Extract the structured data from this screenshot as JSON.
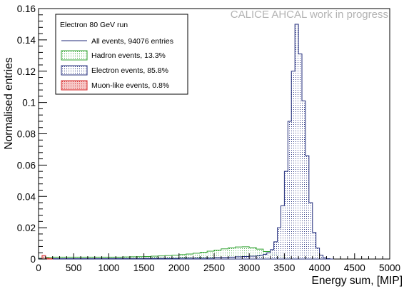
{
  "chart_data": {
    "type": "step-histogram",
    "watermark": "CALICE AHCAL work in progress",
    "xlabel": "Energy sum, [MIP]",
    "ylabel": "Normalised entries",
    "xlim": [
      0,
      5000
    ],
    "ylim": [
      0,
      0.16
    ],
    "x_ticks": [
      "0",
      "500",
      "1000",
      "1500",
      "2000",
      "2500",
      "3000",
      "3500",
      "4000",
      "4500",
      "5000"
    ],
    "y_ticks": [
      "0",
      "0.02",
      "0.04",
      "0.06",
      "0.08",
      "0.1",
      "0.12",
      "0.14",
      "0.16"
    ],
    "bin_width": 50,
    "legend": {
      "header": "Electron 80 GeV run",
      "entries": [
        {
          "label": "All events,  94076 entries",
          "style": "line"
        },
        {
          "label": "Hadron events, 13.3%",
          "style": "box"
        },
        {
          "label": "Electron events, 85.8%",
          "style": "box"
        },
        {
          "label": "Muon-like events, 0.8%",
          "style": "box"
        }
      ]
    },
    "series": [
      {
        "name": "Hadron events, 13.3%",
        "color": "#2ca02c",
        "fill": "#cdeccd",
        "bins": [
          [
            0,
            0.0005
          ],
          [
            100,
            0.001
          ],
          [
            200,
            0.0012
          ],
          [
            300,
            0.0012
          ],
          [
            400,
            0.0012
          ],
          [
            500,
            0.0012
          ],
          [
            600,
            0.0012
          ],
          [
            700,
            0.0012
          ],
          [
            800,
            0.0012
          ],
          [
            900,
            0.0012
          ],
          [
            1000,
            0.0012
          ],
          [
            1100,
            0.0012
          ],
          [
            1200,
            0.0013
          ],
          [
            1300,
            0.0014
          ],
          [
            1400,
            0.0015
          ],
          [
            1500,
            0.0016
          ],
          [
            1600,
            0.0018
          ],
          [
            1700,
            0.002
          ],
          [
            1800,
            0.0022
          ],
          [
            1900,
            0.0025
          ],
          [
            2000,
            0.0028
          ],
          [
            2100,
            0.0032
          ],
          [
            2200,
            0.0037
          ],
          [
            2300,
            0.0043
          ],
          [
            2400,
            0.005
          ],
          [
            2500,
            0.0057
          ],
          [
            2600,
            0.0065
          ],
          [
            2700,
            0.0072
          ],
          [
            2800,
            0.0077
          ],
          [
            2900,
            0.0078
          ],
          [
            3000,
            0.0073
          ],
          [
            3100,
            0.0063
          ],
          [
            3200,
            0.0048
          ],
          [
            3300,
            0.003
          ],
          [
            3400,
            0.0015
          ],
          [
            3500,
            0.0005
          ],
          [
            3600,
            0.0002
          ]
        ]
      },
      {
        "name": "Electron events, 85.8%",
        "color": "#1f2a7a",
        "fill": "#dfe3f4",
        "bins": [
          [
            0,
            0.0002
          ],
          [
            500,
            0.0002
          ],
          [
            1000,
            0.0003
          ],
          [
            1500,
            0.0004
          ],
          [
            2000,
            0.0006
          ],
          [
            2500,
            0.001
          ],
          [
            2700,
            0.0012
          ],
          [
            2800,
            0.0014
          ],
          [
            2900,
            0.0016
          ],
          [
            3000,
            0.0018
          ],
          [
            3100,
            0.002
          ],
          [
            3150,
            0.0024
          ],
          [
            3200,
            0.003
          ],
          [
            3250,
            0.004
          ],
          [
            3300,
            0.006
          ],
          [
            3350,
            0.011
          ],
          [
            3400,
            0.02
          ],
          [
            3450,
            0.034
          ],
          [
            3500,
            0.056
          ],
          [
            3550,
            0.088
          ],
          [
            3600,
            0.12
          ],
          [
            3650,
            0.15
          ],
          [
            3700,
            0.131
          ],
          [
            3750,
            0.101
          ],
          [
            3800,
            0.066
          ],
          [
            3850,
            0.036
          ],
          [
            3900,
            0.017
          ],
          [
            3950,
            0.007
          ],
          [
            4000,
            0.0025
          ],
          [
            4050,
            0.0008
          ],
          [
            4100,
            0.0002
          ],
          [
            4150,
            0.0
          ]
        ]
      },
      {
        "name": "Muon-like events, 0.8%",
        "color": "#d62728",
        "fill": "#f6c8c8",
        "bins": [
          [
            50,
            0.0022
          ],
          [
            100,
            0.0005
          ],
          [
            150,
            0.0002
          ]
        ]
      }
    ]
  }
}
